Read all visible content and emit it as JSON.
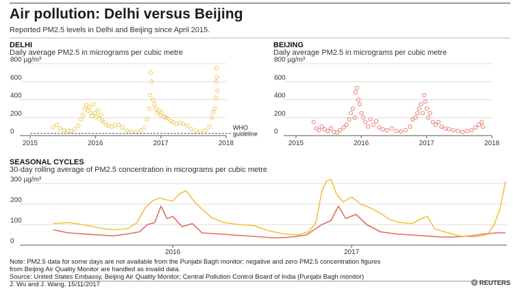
{
  "header": {
    "title": "Air pollution: Delhi versus Beijing",
    "subtitle": "Reported PM2.5 levels in Delhi and Beijing since April 2015."
  },
  "colors": {
    "delhi": "#f0c040",
    "beijing": "#e36a5a",
    "rule": "#444444",
    "guideline": "#555555"
  },
  "chart_data": [
    {
      "type": "scatter",
      "title": "DELHI",
      "subtitle": "Daily average PM2.5 in micrograms per cubic metre",
      "yunit": "µg/m³",
      "ylim": [
        0,
        800
      ],
      "yticks": [
        0,
        200,
        400,
        600,
        800
      ],
      "xticks": [
        "2015",
        "2016",
        "2017",
        "2018"
      ],
      "annotation": {
        "text": "WHO guideline",
        "value": 25
      },
      "series": [
        {
          "color": "#f0c040",
          "x": [
            "2015-05-08",
            "2015-05-30",
            "2015-06-18",
            "2015-07-10",
            "2015-08-01",
            "2015-08-20",
            "2015-09-08",
            "2015-09-28",
            "2015-10-12",
            "2015-10-24",
            "2015-11-04",
            "2015-11-12",
            "2015-11-20",
            "2015-11-28",
            "2015-12-06",
            "2015-12-14",
            "2015-12-22",
            "2015-12-30",
            "2016-01-06",
            "2016-01-14",
            "2016-01-22",
            "2016-01-30",
            "2016-02-08",
            "2016-02-18",
            "2016-03-01",
            "2016-03-15",
            "2016-04-01",
            "2016-04-20",
            "2016-05-10",
            "2016-06-01",
            "2016-06-25",
            "2016-07-20",
            "2016-08-15",
            "2016-09-10",
            "2016-09-30",
            "2016-10-15",
            "2016-10-28",
            "2016-11-02",
            "2016-11-06",
            "2016-11-10",
            "2016-11-18",
            "2016-11-26",
            "2016-12-04",
            "2016-12-12",
            "2016-12-20",
            "2016-12-30",
            "2017-01-08",
            "2017-01-18",
            "2017-01-30",
            "2017-02-10",
            "2017-02-25",
            "2017-03-10",
            "2017-03-28",
            "2017-04-15",
            "2017-05-05",
            "2017-05-28",
            "2017-06-20",
            "2017-07-15",
            "2017-08-10",
            "2017-09-05",
            "2017-09-30",
            "2017-10-14",
            "2017-10-22",
            "2017-10-30",
            "2017-11-04",
            "2017-11-07",
            "2017-11-09",
            "2017-11-11",
            "2017-11-13"
          ],
          "y": [
            95,
            120,
            80,
            60,
            55,
            50,
            75,
            110,
            180,
            230,
            300,
            340,
            280,
            320,
            260,
            220,
            350,
            250,
            210,
            280,
            190,
            230,
            170,
            150,
            120,
            110,
            100,
            115,
            120,
            90,
            55,
            45,
            40,
            55,
            90,
            180,
            300,
            450,
            700,
            600,
            400,
            350,
            300,
            250,
            280,
            230,
            260,
            210,
            200,
            190,
            160,
            150,
            130,
            140,
            130,
            110,
            75,
            55,
            45,
            60,
            100,
            200,
            260,
            300,
            420,
            600,
            750,
            650,
            500
          ]
        }
      ]
    },
    {
      "type": "scatter",
      "title": "BEIJING",
      "subtitle": "Daily average PM2.5 in micrograms per cubic metre",
      "yunit": "µg/m³",
      "ylim": [
        0,
        800
      ],
      "yticks": [
        0,
        200,
        400,
        600,
        800
      ],
      "xticks": [
        "2015",
        "2016",
        "2017",
        "2018"
      ],
      "series": [
        {
          "color": "#e36a5a",
          "x": [
            "2015-04-10",
            "2015-04-25",
            "2015-05-10",
            "2015-05-25",
            "2015-06-10",
            "2015-06-28",
            "2015-07-15",
            "2015-08-01",
            "2015-08-20",
            "2015-09-05",
            "2015-09-25",
            "2015-10-10",
            "2015-10-25",
            "2015-11-05",
            "2015-11-15",
            "2015-11-25",
            "2015-12-01",
            "2015-12-08",
            "2015-12-16",
            "2015-12-24",
            "2016-01-02",
            "2016-01-12",
            "2016-01-25",
            "2016-02-08",
            "2016-02-22",
            "2016-03-08",
            "2016-03-25",
            "2016-04-10",
            "2016-05-01",
            "2016-05-25",
            "2016-06-20",
            "2016-07-15",
            "2016-08-10",
            "2016-09-05",
            "2016-09-30",
            "2016-10-15",
            "2016-10-30",
            "2016-11-10",
            "2016-11-20",
            "2016-12-01",
            "2016-12-10",
            "2016-12-18",
            "2016-12-25",
            "2017-01-02",
            "2017-01-10",
            "2017-01-20",
            "2017-02-05",
            "2017-02-20",
            "2017-03-08",
            "2017-03-25",
            "2017-04-15",
            "2017-05-05",
            "2017-05-30",
            "2017-06-25",
            "2017-07-20",
            "2017-08-15",
            "2017-09-10",
            "2017-10-01",
            "2017-10-20",
            "2017-11-05",
            "2017-11-12"
          ],
          "y": [
            150,
            80,
            60,
            100,
            70,
            50,
            80,
            40,
            35,
            60,
            90,
            120,
            180,
            250,
            300,
            200,
            480,
            530,
            400,
            350,
            250,
            200,
            150,
            100,
            180,
            120,
            160,
            90,
            70,
            60,
            80,
            50,
            45,
            60,
            100,
            180,
            200,
            250,
            300,
            350,
            250,
            450,
            380,
            300,
            200,
            250,
            150,
            120,
            150,
            100,
            80,
            70,
            60,
            50,
            40,
            50,
            60,
            90,
            120,
            150,
            100
          ]
        }
      ]
    },
    {
      "type": "line",
      "title": "SEASONAL CYCLES",
      "subtitle": "30-day rolling average of PM2.5 concentration in micrograms per cubic metre",
      "yunit": "µg/m³",
      "ylim": [
        0,
        300
      ],
      "yticks": [
        0,
        100,
        200,
        300
      ],
      "xticks": [
        "2016",
        "2017"
      ],
      "series": [
        {
          "color": "#f0c040",
          "x": [
            "2015-05-01",
            "2015-06-01",
            "2015-07-01",
            "2015-08-01",
            "2015-09-01",
            "2015-10-01",
            "2015-10-20",
            "2015-11-05",
            "2015-11-20",
            "2015-12-05",
            "2015-12-20",
            "2016-01-01",
            "2016-01-15",
            "2016-01-28",
            "2016-02-15",
            "2016-03-01",
            "2016-03-20",
            "2016-04-15",
            "2016-05-15",
            "2016-06-15",
            "2016-07-15",
            "2016-08-15",
            "2016-09-15",
            "2016-10-05",
            "2016-10-20",
            "2016-11-01",
            "2016-11-10",
            "2016-11-20",
            "2016-12-01",
            "2016-12-15",
            "2017-01-01",
            "2017-01-20",
            "2017-02-10",
            "2017-03-01",
            "2017-03-20",
            "2017-04-10",
            "2017-05-05",
            "2017-05-20",
            "2017-06-05",
            "2017-06-20",
            "2017-07-10",
            "2017-08-10",
            "2017-09-10",
            "2017-10-05",
            "2017-10-20",
            "2017-11-01",
            "2017-11-12"
          ],
          "y": [
            105,
            110,
            100,
            85,
            75,
            80,
            110,
            180,
            215,
            230,
            220,
            215,
            250,
            265,
            210,
            175,
            135,
            110,
            100,
            95,
            70,
            55,
            50,
            65,
            110,
            260,
            310,
            320,
            250,
            210,
            235,
            200,
            180,
            155,
            125,
            110,
            105,
            125,
            140,
            80,
            65,
            45,
            40,
            50,
            100,
            180,
            310
          ]
        },
        {
          "color": "#e36a5a",
          "x": [
            "2015-05-01",
            "2015-06-01",
            "2015-07-01",
            "2015-08-01",
            "2015-09-01",
            "2015-10-01",
            "2015-10-25",
            "2015-11-10",
            "2015-11-25",
            "2015-12-08",
            "2015-12-20",
            "2016-01-01",
            "2016-01-20",
            "2016-02-10",
            "2016-03-01",
            "2016-04-01",
            "2016-05-01",
            "2016-06-01",
            "2016-07-01",
            "2016-08-01",
            "2016-09-01",
            "2016-10-01",
            "2016-11-01",
            "2016-11-20",
            "2016-12-05",
            "2016-12-20",
            "2017-01-10",
            "2017-02-01",
            "2017-03-01",
            "2017-04-01",
            "2017-05-01",
            "2017-06-01",
            "2017-07-01",
            "2017-08-01",
            "2017-09-01",
            "2017-10-01",
            "2017-10-25",
            "2017-11-12"
          ],
          "y": [
            75,
            60,
            55,
            50,
            45,
            55,
            65,
            100,
            110,
            190,
            130,
            140,
            90,
            105,
            60,
            55,
            50,
            45,
            40,
            35,
            40,
            50,
            100,
            120,
            190,
            130,
            150,
            100,
            65,
            55,
            50,
            45,
            40,
            40,
            45,
            55,
            60,
            60
          ]
        }
      ]
    }
  ],
  "notes": {
    "line1": "Note: PM2.5 data for some days are not available from the Punjabi Bagh monitor; negative and zero PM2.5 concentration figures",
    "line2": "from Beijing Air Quality Monitor are handled as invalid data.",
    "source": "Source: United States Embassy, Beijing Air Quality Monitor; Central Pollution Control Board of India (Punjabi Bagh monitor)",
    "credit": "J. Wu and J. Wang,  15/11/2017",
    "brand": "REUTERS"
  }
}
